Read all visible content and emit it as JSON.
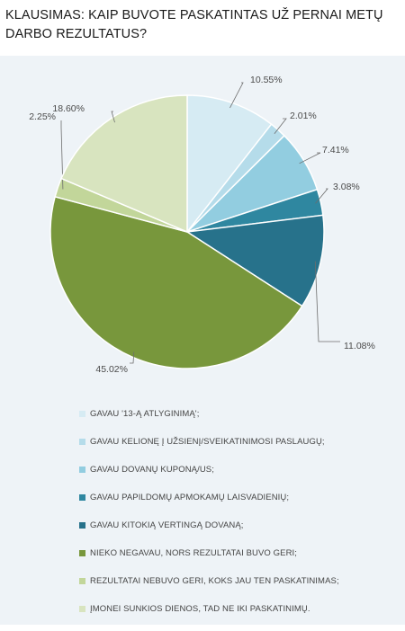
{
  "chart_data": {
    "type": "pie",
    "title": "KLAUSIMAS: KAIP BUVOTE PASKATINTAS UŽ PERNAI METŲ DARBO REZULTATUS?",
    "slices": [
      {
        "label": "GAVAU '13-Ą ATLYGINIMĄ';",
        "value": 10.55,
        "display": "10.55%",
        "color": "#d6ebf3"
      },
      {
        "label": "GAVAU KELIONĘ Į UŽSIENĮ/SVEIKATINIMOSI PASLAUGŲ;",
        "value": 2.01,
        "display": "2.01%",
        "color": "#b5dcea"
      },
      {
        "label": "GAVAU DOVANŲ KUPONĄ/US;",
        "value": 7.41,
        "display": "7.41%",
        "color": "#92cde0"
      },
      {
        "label": "GAVAU PAPILDOMŲ APMOKAMŲ LAISVADIENIŲ;",
        "value": 3.08,
        "display": "3.08%",
        "color": "#2f87a0"
      },
      {
        "label": "GAVAU KITOKIĄ VERTINGĄ DOVANĄ;",
        "value": 11.08,
        "display": "11.08%",
        "color": "#27728b"
      },
      {
        "label": "NIEKO NEGAVAU, NORS REZULTATAI BUVO GERI;",
        "value": 45.02,
        "display": "45.02%",
        "color": "#78973c"
      },
      {
        "label": "REZULTATAI NEBUVO GERI, KOKS JAU TEN PASKATINIMAS;",
        "value": 2.25,
        "display": "2.25%",
        "color": "#c2d69a"
      },
      {
        "label": "ĮMONEI SUNKIOS DIENOS, TAD NE IKI PASKATINIMŲ.",
        "value": 18.6,
        "display": "18.60%",
        "color": "#d8e4bf"
      }
    ],
    "legend_position": "bottom"
  }
}
